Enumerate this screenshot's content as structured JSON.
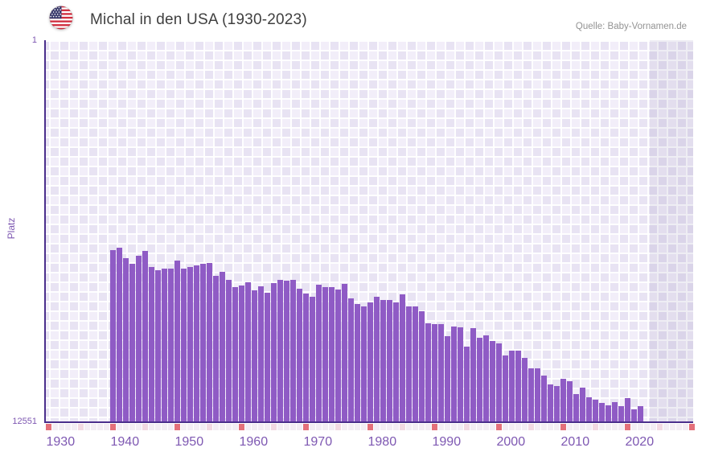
{
  "header": {
    "title": "Michal in den USA (1930-2023)",
    "flag_icon": "usa-flag-icon",
    "source": "Quelle: Baby-Vornamen.de"
  },
  "chart_data": {
    "type": "bar",
    "title": "Michal in den USA (1930-2023)",
    "ylabel": "Platz",
    "y_axis": {
      "label": "Platz",
      "top_label": "1",
      "bottom_label": "12551",
      "min": 1,
      "max": 12551,
      "inverted": true,
      "scale": "linear"
    },
    "x_axis": {
      "tick_labels": [
        "1930",
        "1940",
        "1950",
        "1960",
        "1970",
        "1980",
        "1990",
        "2000",
        "2010",
        "2020"
      ],
      "axis_start": 1930,
      "axis_end": 2030,
      "data_start": 1930,
      "data_end": 2023,
      "major_tick_interval": 10,
      "minor_tick_interval": 5
    },
    "note": "rank (Platz) per year; years 1930-1939 and 2023 have no ranking bar",
    "x": [
      1940,
      1941,
      1942,
      1943,
      1944,
      1945,
      1946,
      1947,
      1948,
      1949,
      1950,
      1951,
      1952,
      1953,
      1954,
      1955,
      1956,
      1957,
      1958,
      1959,
      1960,
      1961,
      1962,
      1963,
      1964,
      1965,
      1966,
      1967,
      1968,
      1969,
      1970,
      1971,
      1972,
      1973,
      1974,
      1975,
      1976,
      1977,
      1978,
      1979,
      1980,
      1981,
      1982,
      1983,
      1984,
      1985,
      1986,
      1987,
      1988,
      1989,
      1990,
      1991,
      1992,
      1993,
      1994,
      1995,
      1996,
      1997,
      1998,
      1999,
      2000,
      2001,
      2002,
      2003,
      2004,
      2005,
      2006,
      2007,
      2008,
      2009,
      2010,
      2011,
      2012,
      2013,
      2014,
      2015,
      2016,
      2017,
      2018,
      2019,
      2020,
      2021,
      2022
    ],
    "values": [
      6900,
      6840,
      7180,
      7370,
      7110,
      6930,
      7460,
      7570,
      7530,
      7530,
      7260,
      7530,
      7480,
      7420,
      7370,
      7340,
      7770,
      7620,
      7900,
      8120,
      8080,
      7960,
      8240,
      8100,
      8320,
      7990,
      7880,
      7920,
      7880,
      8190,
      8340,
      8460,
      8050,
      8120,
      8120,
      8210,
      8030,
      8490,
      8680,
      8760,
      8630,
      8460,
      8560,
      8540,
      8630,
      8360,
      8770,
      8770,
      8930,
      9310,
      9340,
      9360,
      9740,
      9420,
      9450,
      10090,
      9490,
      9800,
      9710,
      9900,
      9980,
      10390,
      10220,
      10220,
      10460,
      10800,
      10800,
      11040,
      11330,
      11390,
      11150,
      11230,
      11650,
      11440,
      11760,
      11840,
      11940,
      12020,
      11920,
      12050,
      11780,
      12150,
      12050
    ],
    "legend": null,
    "grid": "checkered",
    "style": {
      "bar_color": "#8f5bc5",
      "axis_color": "#4b2f8c",
      "x_label_color": "#7e58b2",
      "title_color": "#3f3f3f",
      "source_color": "#939393",
      "tick_decade_color": "#e4707a",
      "tick_half_decade_color": "#f2d9e2",
      "tick_year_color": "#f3edf4",
      "plot_bg_color": "#f2eef9",
      "plot_cell_color": "#e8e3f3",
      "future_overlay_color": "rgba(100,90,150,0.10)"
    }
  }
}
